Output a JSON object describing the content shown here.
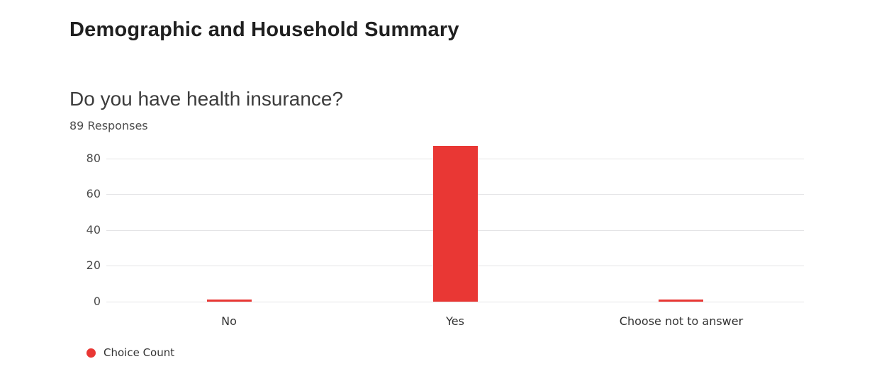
{
  "page": {
    "title": "Demographic and Household Summary"
  },
  "question": {
    "title": "Do you have health insurance?",
    "responses_label": "89 Responses"
  },
  "chart_data": {
    "type": "bar",
    "title": "Do you have health insurance?",
    "subtitle": "89 Responses",
    "categories": [
      "No",
      "Yes",
      "Choose not to answer"
    ],
    "series": [
      {
        "name": "Choice Count",
        "values": [
          1,
          87,
          1
        ],
        "color": "#e93734"
      }
    ],
    "ylim": [
      0,
      89
    ],
    "yticks": [
      0,
      20,
      40,
      60,
      80
    ],
    "grid": true,
    "gridline_color": "#e4e4e6",
    "axis_label_color": "#4c4c4c",
    "legend_position": "bottom-left"
  }
}
